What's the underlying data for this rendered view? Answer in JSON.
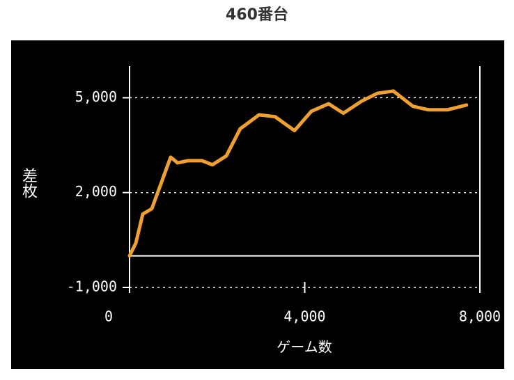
{
  "chart_data": {
    "type": "line",
    "title": "460番台",
    "x_label": "ゲーム数",
    "y_label": "差枚",
    "x": [
      0,
      143,
      302,
      509,
      938,
      1097,
      1335,
      1653,
      1892,
      2210,
      2528,
      2957,
      3323,
      3768,
      4150,
      4547,
      4881,
      5310,
      5660,
      6025,
      6471,
      6820,
      7266,
      7695
    ],
    "values": [
      0,
      400,
      1320,
      1490,
      3120,
      2940,
      3010,
      3010,
      2880,
      3160,
      4020,
      4460,
      4400,
      3960,
      4570,
      4810,
      4510,
      4900,
      5140,
      5210,
      4730,
      4620,
      4620,
      4770
    ],
    "color": "#f0a030",
    "xlim": [
      0,
      8000
    ],
    "xticks": [
      0,
      {
        "value": 4000,
        "label": "4,000"
      },
      {
        "value": 8000,
        "label": "8,000"
      }
    ],
    "ylim": [
      -1000,
      6000
    ],
    "yticks": [
      {
        "value": -1000,
        "label": "-1,000"
      },
      {
        "value": 2000,
        "label": "2,000"
      },
      {
        "value": 5000,
        "label": "5,000"
      }
    ],
    "grid": true
  }
}
